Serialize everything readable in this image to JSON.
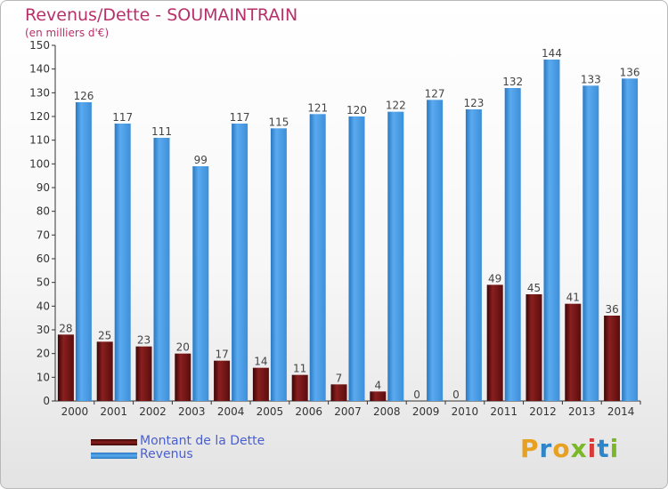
{
  "title": "Revenus/Dette - SOUMAINTRAIN",
  "subtitle": "(en milliers d'€)",
  "logo": {
    "text": "Proxiti",
    "colors": [
      "#e8a020",
      "#2e86c8",
      "#e8a020",
      "#7ab82a",
      "#d83a3a",
      "#2e86c8",
      "#7ab82a"
    ]
  },
  "colors": {
    "dette": "#6b1212",
    "revenus": "#3d8fd8",
    "title": "#b8306a",
    "legend_text": "#4a5fd0"
  },
  "chart_data": {
    "type": "bar",
    "title": "Revenus/Dette - SOUMAINTRAIN",
    "ylabel": "(en milliers d'€)",
    "ylim": [
      0,
      150
    ],
    "yticks": [
      0,
      10,
      20,
      30,
      40,
      50,
      60,
      70,
      80,
      90,
      100,
      110,
      120,
      130,
      140,
      150
    ],
    "grid": false,
    "legend_position": "bottom-left",
    "categories": [
      "2000",
      "2001",
      "2002",
      "2003",
      "2004",
      "2005",
      "2006",
      "2007",
      "2008",
      "2009",
      "2010",
      "2011",
      "2012",
      "2013",
      "2014"
    ],
    "series": [
      {
        "name": "Montant de la Dette",
        "values": [
          28,
          25,
          23,
          20,
          17,
          14,
          11,
          7,
          4,
          0,
          0,
          49,
          45,
          41,
          36
        ]
      },
      {
        "name": "Revenus",
        "values": [
          126,
          117,
          111,
          99,
          117,
          115,
          121,
          120,
          122,
          127,
          123,
          132,
          144,
          133,
          136
        ]
      }
    ]
  }
}
